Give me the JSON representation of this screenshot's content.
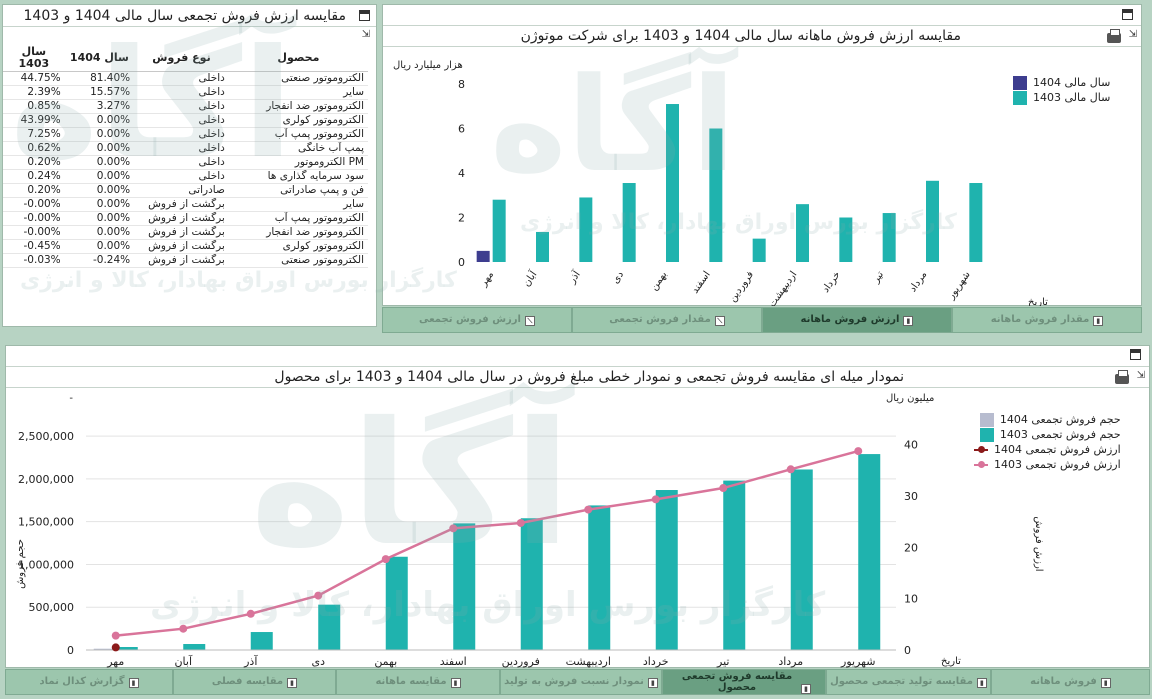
{
  "colors": {
    "teal": "#1fb3ae",
    "navy": "#3d3d8f",
    "pink": "#d9749a",
    "maroon": "#8b1a1a",
    "lightgray": "#b7bccf"
  },
  "table_panel": {
    "title": "مقایسه ارزش فروش تجمعی سال مالی 1404 و 1403",
    "columns": [
      "محصول",
      "نوع فروش",
      "سال 1404",
      "سال 1403"
    ],
    "rows": [
      {
        "product": "الکتروموتور صنعتی",
        "type": "داخلی",
        "y1404": "81.40%",
        "y1403": "44.75%"
      },
      {
        "product": "سایر",
        "type": "داخلی",
        "y1404": "15.57%",
        "y1403": "2.39%"
      },
      {
        "product": "الکتروموتور ضد انفجار",
        "type": "داخلی",
        "y1404": "3.27%",
        "y1403": "0.85%"
      },
      {
        "product": "الکتروموتور کولری",
        "type": "داخلی",
        "y1404": "0.00%",
        "y1403": "43.99%"
      },
      {
        "product": "الکتروموتور پمپ آب",
        "type": "داخلی",
        "y1404": "0.00%",
        "y1403": "7.25%"
      },
      {
        "product": "پمپ آب خانگی",
        "type": "داخلی",
        "y1404": "0.00%",
        "y1403": "0.62%"
      },
      {
        "product": "PM الکتروموتور",
        "type": "داخلی",
        "y1404": "0.00%",
        "y1403": "0.20%"
      },
      {
        "product": "سود سرمایه گذاری ها",
        "type": "داخلی",
        "y1404": "0.00%",
        "y1403": "0.24%"
      },
      {
        "product": "فن و پمپ صادراتی",
        "type": "صادراتی",
        "y1404": "0.00%",
        "y1403": "0.20%"
      },
      {
        "product": "سایر",
        "type": "برگشت از فروش",
        "y1404": "0.00%",
        "y1403": "-0.00%"
      },
      {
        "product": "الکتروموتور پمپ آب",
        "type": "برگشت از فروش",
        "y1404": "0.00%",
        "y1403": "-0.00%"
      },
      {
        "product": "الکتروموتور ضد انفجار",
        "type": "برگشت از فروش",
        "y1404": "0.00%",
        "y1403": "-0.00%"
      },
      {
        "product": "الکتروموتور کولری",
        "type": "برگشت از فروش",
        "y1404": "0.00%",
        "y1403": "-0.45%"
      },
      {
        "product": "الکتروموتور صنعتی",
        "type": "برگشت از فروش",
        "y1404": "-0.24%",
        "y1403": "-0.03%"
      }
    ]
  },
  "monthly_panel": {
    "title": "مقایسه ارزش فروش ماهانه سال مالی 1404 و 1403 برای شرکت موتوژن",
    "tabs": [
      {
        "label": "مقدار فروش ماهانه",
        "active": false
      },
      {
        "label": "ارزش فروش ماهانه",
        "active": true
      },
      {
        "label": "مقدار فروش تجمعی",
        "active": false
      },
      {
        "label": "ارزش فروش تجمعی",
        "active": false
      }
    ]
  },
  "cumulative_panel": {
    "title": "نمودار میله ای مقایسه فروش تجمعی و نمودار خطی مبلغ فروش در سال مالی 1404 و 1403 برای محصول",
    "tabs": [
      {
        "label": "گزارش کدال نماد",
        "active": false
      },
      {
        "label": "مقایسه فصلی",
        "active": false
      },
      {
        "label": "مقایسه ماهانه",
        "active": false
      },
      {
        "label": "نمودار نسبت فروش به تولید",
        "active": false
      },
      {
        "label": "مقایسه فروش تجمعی محصول",
        "active": true
      },
      {
        "label": "مقایسه تولید تجمعی محصول",
        "active": false
      },
      {
        "label": "فروش ماهانه",
        "active": false
      }
    ]
  },
  "watermark": {
    "logo": "آگاه",
    "text": "کارگزار بورس اوراق بهادار، کالا و انرژی"
  },
  "chart_data": [
    {
      "type": "bar",
      "ylabel": "هزار میلیارد ریال",
      "xlabel": "تاریخ",
      "ylim": [
        0,
        8
      ],
      "yticks": [
        0,
        2,
        4,
        6,
        8
      ],
      "categories": [
        "مهر",
        "آبان",
        "آذر",
        "دی",
        "بهمن",
        "اسفند",
        "فروردین",
        "اردیبهشت",
        "خرداد",
        "تیر",
        "مرداد",
        "شهریور"
      ],
      "series": [
        {
          "name": "سال مالی 1404",
          "values": [
            0.5,
            null,
            null,
            null,
            null,
            null,
            null,
            null,
            null,
            null,
            null,
            null
          ]
        },
        {
          "name": "سال مالی 1403",
          "values": [
            2.8,
            1.35,
            2.9,
            3.55,
            7.1,
            6.0,
            1.05,
            2.6,
            2.0,
            2.2,
            3.65,
            3.55
          ]
        }
      ],
      "legend": "top-right"
    },
    {
      "type": "bar",
      "ylabel": "حجم فروش",
      "y2label": "ارزش فروش",
      "y2unit": "میلیون ریال",
      "xlabel": "تاریخ",
      "ylim": [
        0,
        2700000
      ],
      "yticks": [
        0,
        500000,
        1000000,
        1500000,
        2000000,
        2500000
      ],
      "yticklabels": [
        "0",
        "500,000",
        "1,000,000",
        "1,500,000",
        "2,000,000",
        "2,500,000"
      ],
      "y2lim": [
        0,
        45
      ],
      "y2ticks": [
        0,
        10,
        20,
        30,
        40
      ],
      "categories": [
        "مهر",
        "آبان",
        "آذر",
        "دی",
        "بهمن",
        "اسفند",
        "فروردین",
        "اردیبهشت",
        "خرداد",
        "تیر",
        "مرداد",
        "شهریور"
      ],
      "series": [
        {
          "name": "حجم فروش تجمعی 1404",
          "kind": "bar",
          "values": [
            15000,
            null,
            null,
            null,
            null,
            null,
            null,
            null,
            null,
            null,
            null,
            null
          ]
        },
        {
          "name": "حجم فروش تجمعی 1403",
          "kind": "bar",
          "values": [
            35000,
            70000,
            210000,
            530000,
            1090000,
            1480000,
            1540000,
            1690000,
            1870000,
            1980000,
            2110000,
            2290000
          ]
        },
        {
          "name": "ارزش فروش تجمعی 1404",
          "kind": "line",
          "axis": "y2",
          "values": [
            0.5,
            null,
            null,
            null,
            null,
            null,
            null,
            null,
            null,
            null,
            null,
            null
          ]
        },
        {
          "name": "ارزش فروش تجمعی 1403",
          "kind": "line",
          "axis": "y2",
          "values": [
            2.8,
            4.15,
            7.05,
            10.6,
            17.7,
            23.7,
            24.75,
            27.35,
            29.35,
            31.55,
            35.2,
            38.75
          ]
        }
      ],
      "legend": "top-right"
    }
  ]
}
